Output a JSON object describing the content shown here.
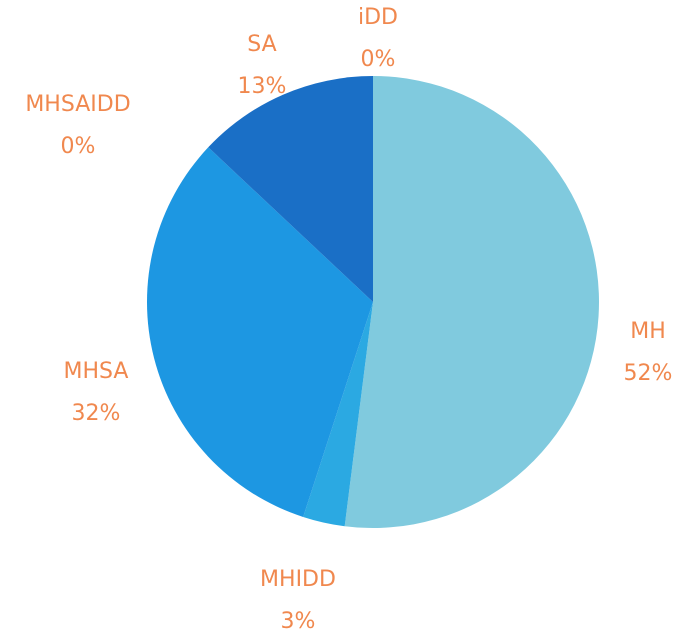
{
  "chart_data": {
    "type": "pie",
    "categories": [
      "MH",
      "MHIDD",
      "MHSA",
      "MHSAIDD",
      "SA",
      "iDD"
    ],
    "values": [
      52,
      3,
      32,
      0,
      13,
      0
    ],
    "value_labels": [
      "52%",
      "3%",
      "32%",
      "0%",
      "13%",
      "0%"
    ],
    "colors": [
      "#80cade",
      "#2ba9e2",
      "#1d97e2",
      "#1b82d6",
      "#1a6fc6",
      "#1a6fc6"
    ]
  }
}
